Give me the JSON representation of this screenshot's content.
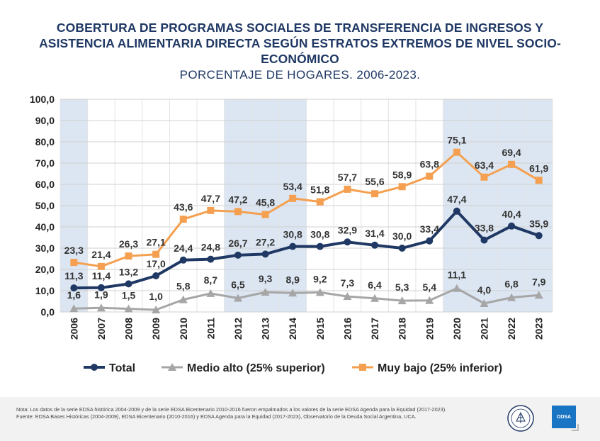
{
  "title_lines": [
    "COBERTURA DE PROGRAMAS SOCIALES DE TRANSFERENCIA DE INGRESOS Y",
    "ASISTENCIA ALIMENTARIA DIRECTA SEGÚN ESTRATOS EXTREMOS DE NIVEL SOCIO-",
    "ECONÓMICO"
  ],
  "subtitle": "PORCENTAJE DE HOGARES. 2006-2023.",
  "chart_data": {
    "type": "line",
    "categories": [
      "2006",
      "2007",
      "2008",
      "2009",
      "2010",
      "2011",
      "2012",
      "2013",
      "2014",
      "2015",
      "2016",
      "2017",
      "2018",
      "2019",
      "2020",
      "2021",
      "2022",
      "2023"
    ],
    "ylim": [
      0,
      100
    ],
    "yticks": [
      "0,0",
      "10,0",
      "20,0",
      "30,0",
      "40,0",
      "50,0",
      "60,0",
      "70,0",
      "80,0",
      "90,0",
      "100,0"
    ],
    "grid": true,
    "legend_position": "bottom",
    "shaded_bands": [
      [
        "2006",
        "2006"
      ],
      [
        "2012",
        "2014"
      ],
      [
        "2020",
        "2023"
      ]
    ],
    "series": [
      {
        "name": "Total",
        "color": "#1f3864",
        "marker": "circle",
        "values": [
          11.3,
          11.4,
          13.2,
          17.0,
          24.4,
          24.8,
          26.7,
          27.2,
          30.8,
          30.8,
          32.9,
          31.4,
          30.0,
          33.4,
          47.4,
          33.8,
          40.4,
          35.9
        ],
        "labels": [
          "11,3",
          "11,4",
          "13,2",
          "17,0",
          "24,4",
          "24,8",
          "26,7",
          "27,2",
          "30,8",
          "30,8",
          "32,9",
          "31,4",
          "30,0",
          "33,4",
          "47,4",
          "33,8",
          "40,4",
          "35,9"
        ]
      },
      {
        "name": "Medio alto (25% superior)",
        "color": "#a6a6a6",
        "marker": "triangle",
        "values": [
          1.6,
          1.9,
          1.5,
          1.0,
          5.8,
          8.7,
          6.5,
          9.3,
          8.9,
          9.2,
          7.3,
          6.4,
          5.3,
          5.4,
          11.1,
          4.0,
          6.8,
          7.9
        ],
        "labels": [
          "1,6",
          "1,9",
          "1,5",
          "1,0",
          "5,8",
          "8,7",
          "6,5",
          "9,3",
          "8,9",
          "9,2",
          "7,3",
          "6,4",
          "5,3",
          "5,4",
          "11,1",
          "4,0",
          "6,8",
          "7,9"
        ]
      },
      {
        "name": "Muy bajo (25% inferior)",
        "color": "#f4a050",
        "marker": "square",
        "values": [
          23.3,
          21.4,
          26.3,
          27.1,
          43.6,
          47.7,
          47.2,
          45.8,
          53.4,
          51.8,
          57.7,
          55.6,
          58.9,
          63.8,
          75.1,
          63.4,
          69.4,
          61.9
        ],
        "labels": [
          "23,3",
          "21,4",
          "26,3",
          "27,1",
          "43,6",
          "47,7",
          "47,2",
          "45,8",
          "53,4",
          "51,8",
          "57,7",
          "55,6",
          "58,9",
          "63,8",
          "75,1",
          "63,4",
          "69,4",
          "61,9"
        ]
      }
    ]
  },
  "footer": {
    "note": "Nota: Los datos de la serie EDSA histórica 2004-2009 y de la serie EDSA Bicentenario 2010-2016 fueron empalmados a los valores de la serie EDSA Agenda para la Equidad (2017-2023).",
    "source": "Fuente: EDSA Bases Históricas (2004-2009), EDSA Bicentenario (2010-2016) y EDSA Agenda para la Equidad (2017-2023), Observatorio de la Deuda Social Argentina, UCA.",
    "logo_text": "ODSA"
  }
}
